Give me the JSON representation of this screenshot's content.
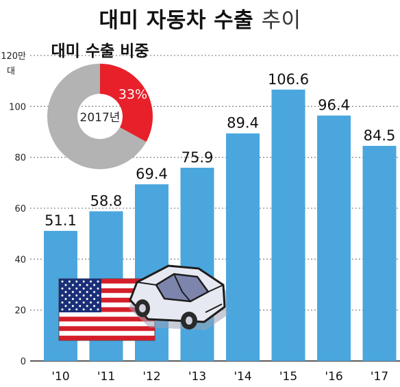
{
  "title": {
    "bold": "대미 자동차 수출",
    "light": "추이"
  },
  "chart_data": [
    {
      "type": "bar",
      "title": "대미 자동차 수출 추이",
      "unit_label": "대",
      "categories": [
        "'10",
        "'11",
        "'12",
        "'13",
        "'14",
        "'15",
        "'16",
        "'17"
      ],
      "values": [
        51.1,
        58.8,
        69.4,
        75.9,
        89.4,
        106.6,
        96.4,
        84.5
      ],
      "value_labels": [
        "51.1",
        "58.8",
        "69.4",
        "75.9",
        "89.4",
        "106.6",
        "96.4",
        "84.5"
      ],
      "y_ticks": [
        "0",
        "20",
        "40",
        "60",
        "80",
        "100",
        "120만"
      ],
      "y_tick_values": [
        0,
        20,
        40,
        60,
        80,
        100,
        120
      ],
      "ylim": [
        0,
        120
      ],
      "grid": true,
      "bar_color": "#4ba6de"
    },
    {
      "type": "pie",
      "title": "대미 수출 비중",
      "center_label": "2017년",
      "slices": [
        {
          "label": "33%",
          "value": 33,
          "color": "#e8202a"
        },
        {
          "label": "",
          "value": 67,
          "color": "#b3b3b3"
        }
      ]
    }
  ],
  "colors": {
    "bar": "#4ba6de",
    "grid": "#8a8a8a",
    "pie_highlight": "#e8202a",
    "pie_rest": "#b3b3b3"
  },
  "illustration": {
    "flag": "us-flag-icon",
    "car": "car-icon"
  }
}
